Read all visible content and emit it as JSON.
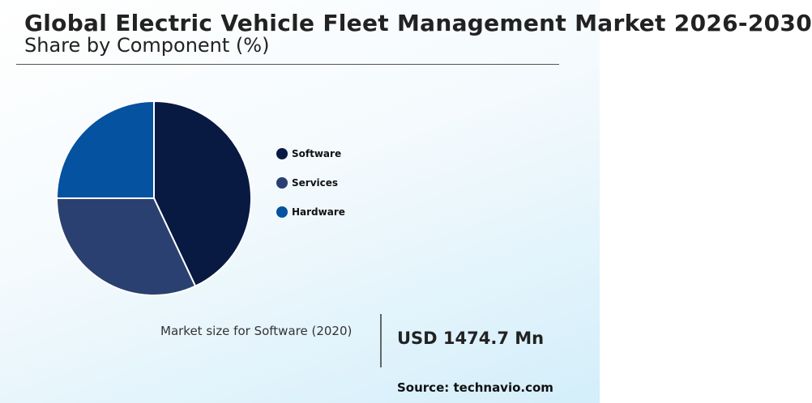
{
  "header": {
    "title": "Global Electric Vehicle Fleet Management Market 2026-2030",
    "subtitle": "Share by Component (%)"
  },
  "chart_data": {
    "type": "pie",
    "title": "Global Electric Vehicle Fleet Management Market 2026-2030",
    "subtitle": "Share by Component (%)",
    "categories": [
      "Software",
      "Services",
      "Hardware"
    ],
    "values": [
      43,
      32,
      25
    ],
    "colors": [
      "#081a42",
      "#2a4070",
      "#0452a0"
    ],
    "legend_position": "right"
  },
  "callout": {
    "label": "Market size for Software (2020)",
    "value": "USD 1474.7 Mn"
  },
  "footer": {
    "source": "Source: technavio.com"
  }
}
